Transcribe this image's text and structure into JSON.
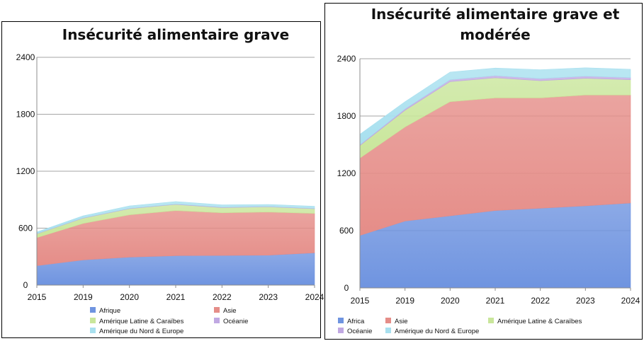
{
  "colors": {
    "afrique": "#6f94e0",
    "asie": "#e58d88",
    "amerique_latine": "#c9e69b",
    "oceanie": "#c0a8e2",
    "amerique_nord_europe": "#a8e0ef",
    "grid": "#a6a6a6",
    "axis": "#8c8c8c"
  },
  "chart_data": [
    {
      "type": "area",
      "stacked": true,
      "title": "Insécurité alimentaire grave",
      "xlabel": "",
      "ylabel": "",
      "categories": [
        "2015",
        "2019",
        "2020",
        "2021",
        "2022",
        "2023",
        "2024"
      ],
      "ylim": [
        0,
        2400
      ],
      "yticks": [
        "0",
        "600",
        "1200",
        "1800",
        "2400"
      ],
      "grid": true,
      "legend_position": "bottom",
      "series": [
        {
          "name": "Afrique",
          "color_key": "afrique",
          "values": [
            205,
            265,
            295,
            310,
            312,
            315,
            340
          ]
        },
        {
          "name": "Asie",
          "color_key": "asie",
          "values": [
            295,
            385,
            445,
            475,
            450,
            455,
            415
          ]
        },
        {
          "name": "Amérique Latine & Caraïbes",
          "color_key": "amerique_latine",
          "values": [
            40,
            55,
            65,
            65,
            55,
            55,
            50
          ]
        },
        {
          "name": "Océanie",
          "color_key": "oceanie",
          "values": [
            3,
            4,
            4,
            4,
            4,
            4,
            4
          ]
        },
        {
          "name": "Amérique du Nord & Europe",
          "color_key": "amerique_nord_europe",
          "values": [
            17,
            21,
            26,
            26,
            24,
            21,
            21
          ]
        }
      ],
      "legend_order": [
        "Afrique",
        "Asie",
        "Amérique Latine & Caraïbes",
        "Océanie",
        "Amérique du Nord & Europe"
      ]
    },
    {
      "type": "area",
      "stacked": true,
      "title": "Insécurité alimentaire grave et modérée",
      "title_lines": [
        "Insécurité alimentaire grave et",
        "modérée"
      ],
      "xlabel": "",
      "ylabel": "",
      "categories": [
        "2015",
        "2019",
        "2020",
        "2021",
        "2022",
        "2023",
        "2024"
      ],
      "ylim": [
        0,
        2400
      ],
      "yticks": [
        "0",
        "600",
        "1200",
        "1800",
        "2400"
      ],
      "grid": true,
      "legend_position": "bottom",
      "series": [
        {
          "name": "Africa",
          "color_key": "afrique",
          "values": [
            550,
            700,
            755,
            810,
            835,
            860,
            890
          ]
        },
        {
          "name": "Asie",
          "color_key": "asie",
          "values": [
            810,
            985,
            1195,
            1180,
            1155,
            1160,
            1130
          ]
        },
        {
          "name": "Amérique Latine & Caraïbes",
          "color_key": "amerique_latine",
          "values": [
            130,
            175,
            210,
            210,
            180,
            175,
            160
          ]
        },
        {
          "name": "Océanie",
          "color_key": "oceanie",
          "values": [
            10,
            15,
            20,
            22,
            22,
            22,
            22
          ]
        },
        {
          "name": "Amérique du Nord & Europe",
          "color_key": "amerique_nord_europe",
          "values": [
            110,
            75,
            80,
            80,
            93,
            88,
            88
          ]
        }
      ],
      "legend_order": [
        "Africa",
        "Asie",
        "Amérique Latine & Caraïbes",
        "Océanie",
        "Amérique du Nord & Europe"
      ]
    }
  ]
}
